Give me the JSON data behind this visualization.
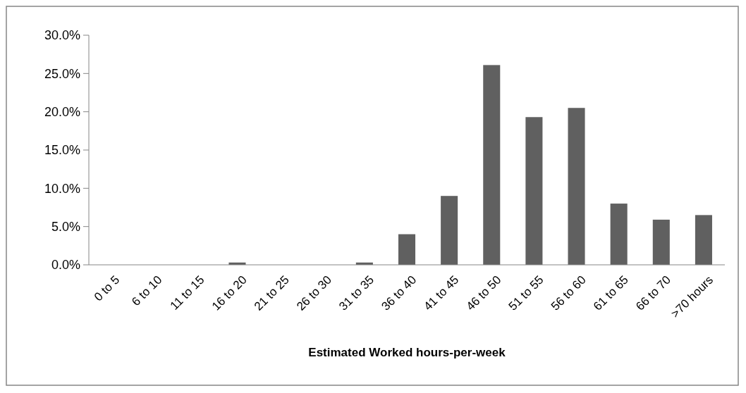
{
  "chart_data": {
    "type": "bar",
    "xlabel": "Estimated Worked hours-per-week",
    "categories": [
      "0 to 5",
      "6 to 10",
      "11 to 15",
      "16 to 20",
      "21 to 25",
      "26 to 30",
      "31 to 35",
      "36 to 40",
      "41 to 45",
      "46 to 50",
      "51 to 55",
      "56 to 60",
      "61 to 65",
      "66 to 70",
      ">70 hours"
    ],
    "values": [
      0,
      0,
      0,
      0.3,
      0,
      0,
      0.3,
      4.0,
      9.0,
      26.1,
      19.3,
      20.5,
      8.0,
      5.9,
      6.5
    ],
    "color": "#606060",
    "ylim": [
      0,
      30
    ],
    "yticks": [
      {
        "value": 0,
        "label": "0.0%"
      },
      {
        "value": 5,
        "label": "5.0%"
      },
      {
        "value": 10,
        "label": "10.0%"
      },
      {
        "value": 15,
        "label": "15.0%"
      },
      {
        "value": 20,
        "label": "20.0%"
      },
      {
        "value": 25,
        "label": "25.0%"
      },
      {
        "value": 30,
        "label": "30.0%"
      }
    ],
    "grid": false
  }
}
